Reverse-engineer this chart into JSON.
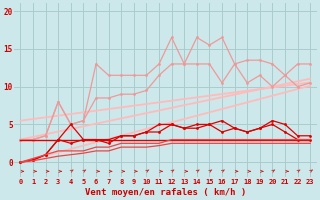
{
  "x": [
    0,
    1,
    2,
    3,
    4,
    5,
    6,
    7,
    8,
    9,
    10,
    11,
    12,
    13,
    14,
    15,
    16,
    17,
    18,
    19,
    20,
    21,
    22,
    23
  ],
  "trend1_y": [
    0.0,
    0.44,
    0.88,
    1.32,
    1.76,
    2.2,
    2.64,
    3.08,
    3.52,
    3.96,
    4.4,
    4.84,
    5.28,
    5.72,
    6.16,
    6.6,
    7.04,
    7.48,
    7.92,
    8.36,
    8.8,
    9.24,
    9.68,
    10.12
  ],
  "trend2_y": [
    3.0,
    3.35,
    3.7,
    4.05,
    4.4,
    4.75,
    5.1,
    5.45,
    5.8,
    6.15,
    6.5,
    6.85,
    7.2,
    7.55,
    7.9,
    8.25,
    8.6,
    8.95,
    9.3,
    9.65,
    10.0,
    10.35,
    10.7,
    11.05
  ],
  "trend3_y": [
    5.5,
    5.72,
    5.94,
    6.16,
    6.38,
    6.6,
    6.82,
    7.04,
    7.26,
    7.48,
    7.7,
    7.92,
    8.14,
    8.36,
    8.58,
    8.8,
    9.02,
    9.24,
    9.46,
    9.68,
    9.9,
    10.12,
    10.34,
    10.56
  ],
  "pink_upper_y": [
    3.0,
    3.0,
    3.5,
    8.0,
    5.0,
    5.5,
    13.0,
    11.5,
    11.5,
    11.5,
    11.5,
    13.0,
    16.5,
    13.0,
    16.5,
    15.5,
    16.5,
    13.0,
    13.5,
    13.5,
    13.0,
    11.5,
    13.0,
    13.0
  ],
  "pink_mid_y": [
    3.0,
    3.0,
    3.5,
    8.0,
    5.0,
    5.5,
    8.5,
    8.5,
    9.0,
    9.0,
    9.5,
    11.5,
    13.0,
    13.0,
    13.0,
    13.0,
    10.5,
    13.0,
    10.5,
    11.5,
    10.0,
    11.5,
    10.0,
    10.5
  ],
  "red_upper_y": [
    0.0,
    0.3,
    1.0,
    3.0,
    5.0,
    3.0,
    3.0,
    2.5,
    3.5,
    3.5,
    4.0,
    5.0,
    5.0,
    4.5,
    5.0,
    5.0,
    5.5,
    4.5,
    4.0,
    4.5,
    5.5,
    5.0,
    3.5,
    3.5
  ],
  "red_mid_y": [
    0.0,
    0.3,
    1.0,
    3.0,
    2.5,
    3.0,
    3.0,
    3.0,
    3.5,
    3.5,
    4.0,
    4.0,
    5.0,
    4.5,
    4.5,
    5.0,
    4.0,
    4.5,
    4.0,
    4.5,
    5.0,
    4.0,
    3.0,
    3.0
  ],
  "red_flat_y": [
    3.0,
    3.0,
    3.0,
    3.0,
    3.0,
    3.0,
    3.0,
    3.0,
    3.0,
    3.0,
    3.0,
    3.0,
    3.0,
    3.0,
    3.0,
    3.0,
    3.0,
    3.0,
    3.0,
    3.0,
    3.0,
    3.0,
    3.0,
    3.0
  ],
  "red_low1_y": [
    0.0,
    0.5,
    1.0,
    1.5,
    1.5,
    1.5,
    2.0,
    2.0,
    2.5,
    2.5,
    2.5,
    2.5,
    3.0,
    3.0,
    3.0,
    3.0,
    3.0,
    3.0,
    3.0,
    3.0,
    3.0,
    3.0,
    3.0,
    3.0
  ],
  "red_low2_y": [
    0.0,
    0.2,
    0.5,
    0.8,
    1.0,
    1.2,
    1.5,
    1.5,
    2.0,
    2.0,
    2.0,
    2.2,
    2.5,
    2.5,
    2.5,
    2.5,
    2.5,
    2.5,
    2.5,
    2.5,
    2.5,
    2.5,
    2.5,
    2.5
  ],
  "arrows_angles": [
    0,
    0,
    0,
    0,
    45,
    45,
    0,
    0,
    0,
    0,
    45,
    0,
    45,
    0,
    45,
    45,
    45,
    0,
    0,
    0,
    45,
    0,
    45,
    45
  ],
  "background_color": "#cde8ea",
  "grid_color": "#aacccc",
  "color_dark_red": "#dd0000",
  "color_medium_red": "#ee4444",
  "color_pink": "#ee9999",
  "color_light_pink": "#ffbbbb",
  "color_arrow": "#cc2222",
  "xlabel": "Vent moyen/en rafales ( km/h )",
  "xlabel_color": "#cc0000",
  "tick_color": "#cc0000",
  "yticks": [
    0,
    5,
    10,
    15,
    20
  ],
  "xticks": [
    0,
    1,
    2,
    3,
    4,
    5,
    6,
    7,
    8,
    9,
    10,
    11,
    12,
    13,
    14,
    15,
    16,
    17,
    18,
    19,
    20,
    21,
    22,
    23
  ],
  "ylim": [
    -2.0,
    21.0
  ],
  "xlim": [
    -0.5,
    23.5
  ]
}
